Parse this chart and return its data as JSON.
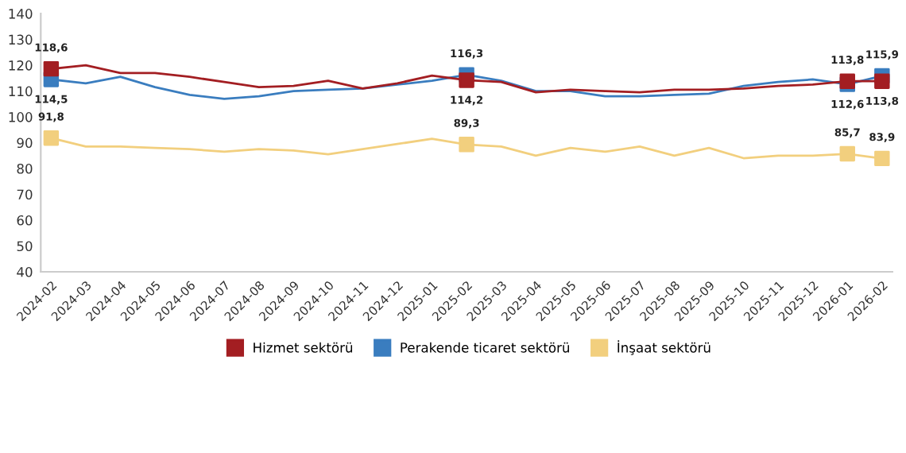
{
  "chart_data": {
    "type": "line",
    "categories": [
      "2024-02",
      "2024-03",
      "2024-04",
      "2024-05",
      "2024-06",
      "2024-07",
      "2024-08",
      "2024-09",
      "2024-10",
      "2024-11",
      "2024-12",
      "2025-01",
      "2025-02",
      "2025-03",
      "2025-04",
      "2025-05",
      "2025-06",
      "2025-07",
      "2025-08",
      "2025-09",
      "2025-10",
      "2025-11",
      "2025-12",
      "2026-01",
      "2026-02"
    ],
    "series": [
      {
        "name": "Hizmet sektörü",
        "color": "#a31e22",
        "values": [
          118.6,
          120,
          117,
          117,
          115.5,
          113.5,
          111.5,
          112,
          114,
          111,
          113,
          116,
          114.2,
          113.5,
          109.5,
          110.5,
          110,
          109.5,
          110.5,
          110.5,
          111,
          112,
          112.5,
          113.8,
          113.8
        ],
        "value_labels": [
          "118,6",
          null,
          null,
          null,
          null,
          null,
          null,
          null,
          null,
          null,
          null,
          null,
          "114,2",
          null,
          null,
          null,
          null,
          null,
          null,
          null,
          null,
          null,
          null,
          "113,8",
          "113,8"
        ]
      },
      {
        "name": "Perakende ticaret sektörü",
        "color": "#3a7dbf",
        "values": [
          114.5,
          113,
          115.5,
          111.5,
          108.5,
          107,
          108,
          110,
          110.5,
          111,
          112.5,
          114,
          116.3,
          114,
          110,
          110,
          108,
          108,
          108.5,
          109,
          112,
          113.5,
          114.5,
          112.6,
          115.9
        ],
        "value_labels": [
          "114,5",
          null,
          null,
          null,
          null,
          null,
          null,
          null,
          null,
          null,
          null,
          null,
          "116,3",
          null,
          null,
          null,
          null,
          null,
          null,
          null,
          null,
          null,
          null,
          "112,6",
          "115,9"
        ]
      },
      {
        "name": "İnşaat sektörü",
        "color": "#f2cf7e",
        "values": [
          91.8,
          88.5,
          88.5,
          88,
          87.5,
          86.5,
          87.5,
          87,
          85.5,
          87.5,
          89.5,
          91.5,
          89.3,
          88.5,
          85,
          88,
          86.5,
          88.5,
          85,
          88,
          84,
          85,
          85,
          85.7,
          83.9
        ],
        "value_labels": [
          "91,8",
          null,
          null,
          null,
          null,
          null,
          null,
          null,
          null,
          null,
          null,
          null,
          "89,3",
          null,
          null,
          null,
          null,
          null,
          null,
          null,
          null,
          null,
          null,
          "85,7",
          "83,9"
        ]
      }
    ],
    "ylim": [
      40,
      140
    ],
    "yticks": [
      40,
      50,
      60,
      70,
      80,
      90,
      100,
      110,
      120,
      130,
      140
    ],
    "grid": false,
    "legend": "bottom",
    "line_style": "solid"
  }
}
